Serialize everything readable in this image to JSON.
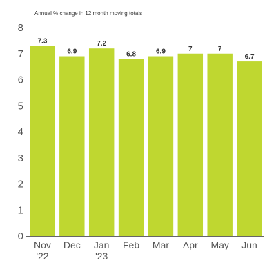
{
  "chart_data": {
    "type": "bar",
    "title": "",
    "subtitle": "Annual % change in 12 month moving totals",
    "xlabel": "",
    "ylabel": "",
    "categories": [
      [
        "Nov",
        "'22"
      ],
      [
        "Dec"
      ],
      [
        "Jan",
        "'23"
      ],
      [
        "Feb"
      ],
      [
        "Mar"
      ],
      [
        "Apr"
      ],
      [
        "May"
      ],
      [
        "Jun"
      ]
    ],
    "values": [
      7.3,
      6.9,
      7.2,
      6.8,
      6.9,
      7,
      7,
      6.7
    ],
    "data_labels": [
      "7.3",
      "6.9",
      "7.2",
      "6.8",
      "6.9",
      "7",
      "7",
      "6.7"
    ],
    "yticks": [
      0,
      1,
      2,
      3,
      4,
      5,
      6,
      7,
      8
    ],
    "ylim": [
      0,
      8
    ],
    "grid": false,
    "legend": "none",
    "bar_color": "#bfd730",
    "axis_color": "#666666"
  }
}
